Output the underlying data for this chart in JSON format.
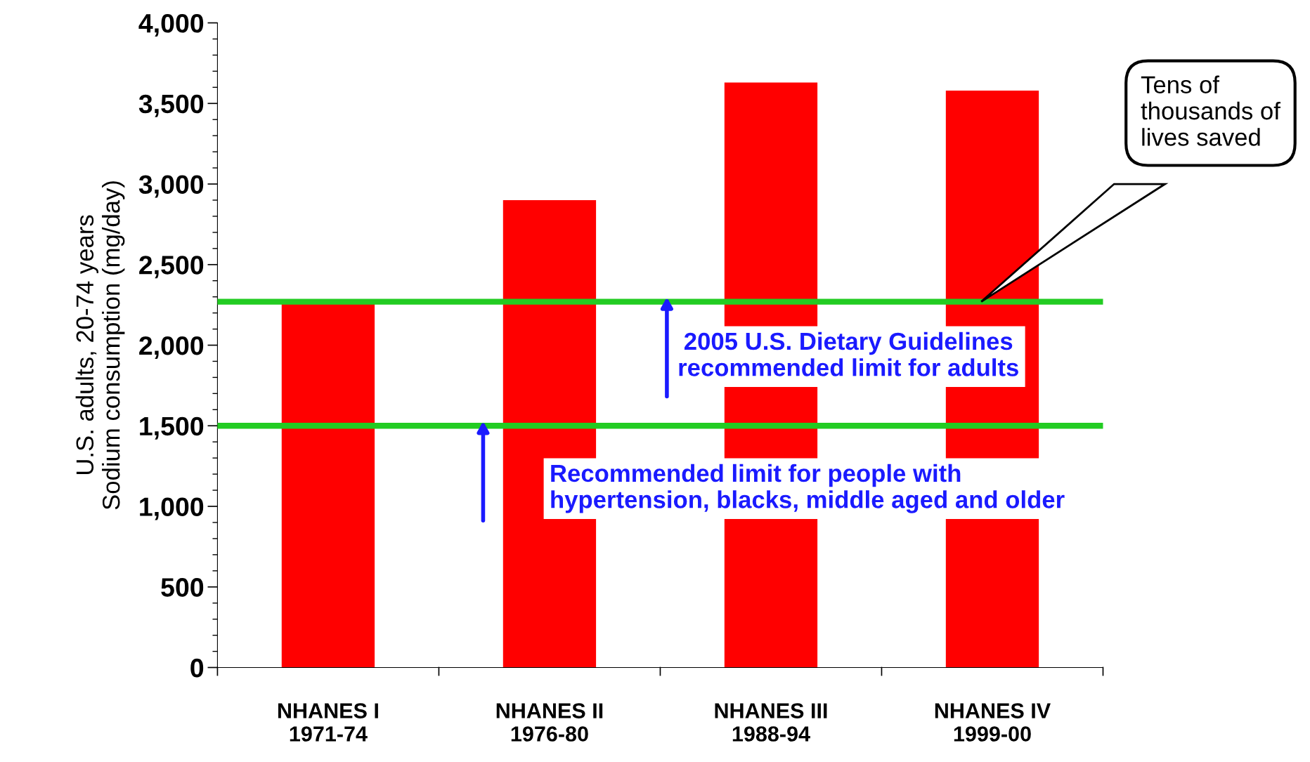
{
  "chart_data": {
    "type": "bar",
    "ylabel": "U.S. adults, 20-74 years\nSodium consumption (mg/day)",
    "categories": [
      "NHANES I\n1971-74",
      "NHANES II\n1976-80",
      "NHANES III\n1988-94",
      "NHANES IV\n1999-00"
    ],
    "values": [
      2260,
      2900,
      3630,
      3580
    ],
    "color": "#ff0000",
    "ylim": [
      0,
      4000
    ],
    "yticks": [
      0,
      {
        "value": 500,
        "label": "500"
      },
      {
        "value": 1000,
        "label": "1,000"
      },
      {
        "value": 1500,
        "label": "1,500"
      },
      {
        "value": 2000,
        "label": "2,000"
      },
      {
        "value": 2500,
        "label": "2,500"
      },
      {
        "value": 3000,
        "label": "3,000"
      },
      {
        "value": 3500,
        "label": "3,500"
      },
      {
        "value": 4000,
        "label": "4,000"
      }
    ],
    "grid": false,
    "ref_lines": [
      {
        "axis": "y",
        "value": 2270,
        "label": "2005 U.S. Dietary Guidelines\nrecommended limit for adults",
        "color": "#22cc22"
      },
      {
        "axis": "y",
        "value": 1500,
        "label": "Recommended limit for people with\nhypertension, blacks, middle aged and older",
        "color": "#22cc22"
      }
    ],
    "annotations": [
      "Tens of\nthousands of\nlives saved"
    ]
  }
}
